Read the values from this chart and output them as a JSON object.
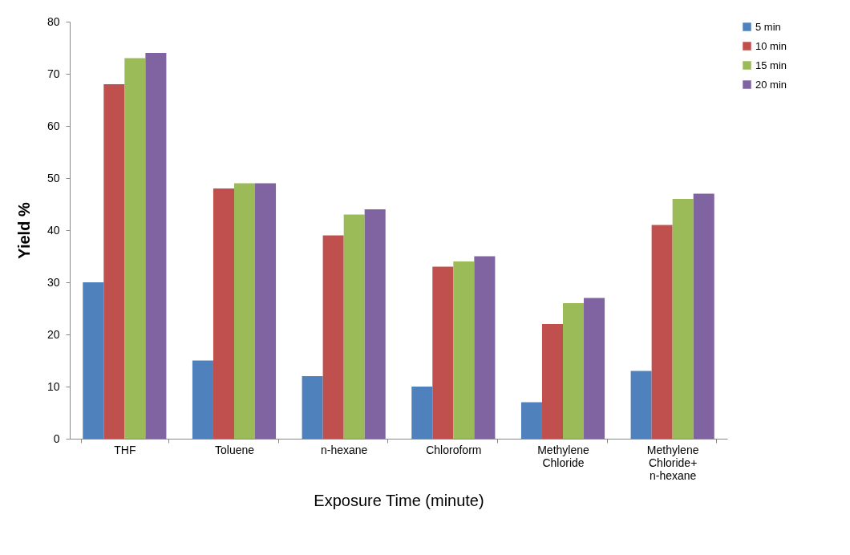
{
  "chart_data": {
    "type": "bar",
    "xlabel": "Exposure Time (minute)",
    "ylabel": "Yield %",
    "categories": [
      "THF",
      "Toluene",
      "n-hexane",
      "Chloroform",
      "Methylene Chloride",
      "Methylene Chloride+ n-hexane"
    ],
    "series": [
      {
        "name": "5 min",
        "color": "#4f81bd",
        "values": [
          30,
          15,
          12,
          10,
          7,
          13
        ]
      },
      {
        "name": "10 min",
        "color": "#c0504d",
        "values": [
          68,
          48,
          39,
          33,
          22,
          41
        ]
      },
      {
        "name": "15 min",
        "color": "#9bbb59",
        "values": [
          73,
          49,
          43,
          34,
          26,
          46
        ]
      },
      {
        "name": "20 min",
        "color": "#8064a2",
        "values": [
          74,
          49,
          44,
          35,
          27,
          47
        ]
      }
    ],
    "ylim": [
      0,
      80
    ],
    "yticks": [
      0,
      10,
      20,
      30,
      40,
      50,
      60,
      70,
      80
    ],
    "grid": false,
    "legend": "right"
  }
}
